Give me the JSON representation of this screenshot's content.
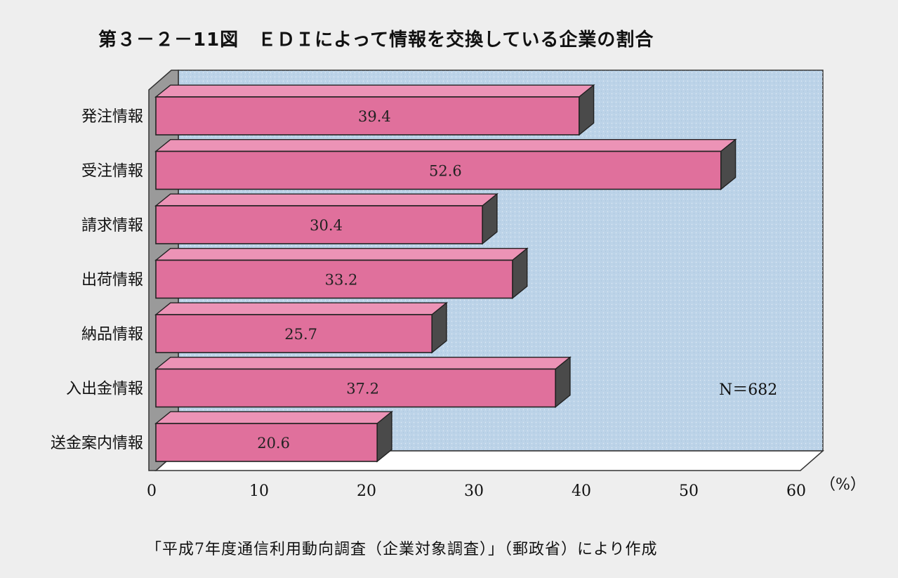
{
  "title": "第３－２－11図　ＥＤＩによって情報を交換している企業の割合",
  "source": "「平成7年度通信利用動向調査（企業対象調査）」（郵政省）により作成",
  "colors": {
    "background": "#eeeeee",
    "plot_back": "#bcd3e8",
    "bar_front": "#e0709c",
    "bar_top": "#ec93b6",
    "bar_side": "#4a4a4a"
  },
  "chart_data": {
    "type": "bar",
    "orientation": "horizontal",
    "categories": [
      "発注情報",
      "受注情報",
      "請求情報",
      "出荷情報",
      "納品情報",
      "入出金情報",
      "送金案内情報"
    ],
    "values": [
      39.4,
      52.6,
      30.4,
      33.2,
      25.7,
      37.2,
      20.6
    ],
    "value_labels": [
      "39.4",
      "52.6",
      "30.4",
      "33.2",
      "25.7",
      "37.2",
      "20.6"
    ],
    "x_ticks": [
      "0",
      "10",
      "20",
      "30",
      "40",
      "50",
      "60"
    ],
    "x_unit": "（%）",
    "xlim": [
      0,
      60
    ],
    "annotation": "N＝682",
    "grid": false,
    "legend": "none"
  }
}
